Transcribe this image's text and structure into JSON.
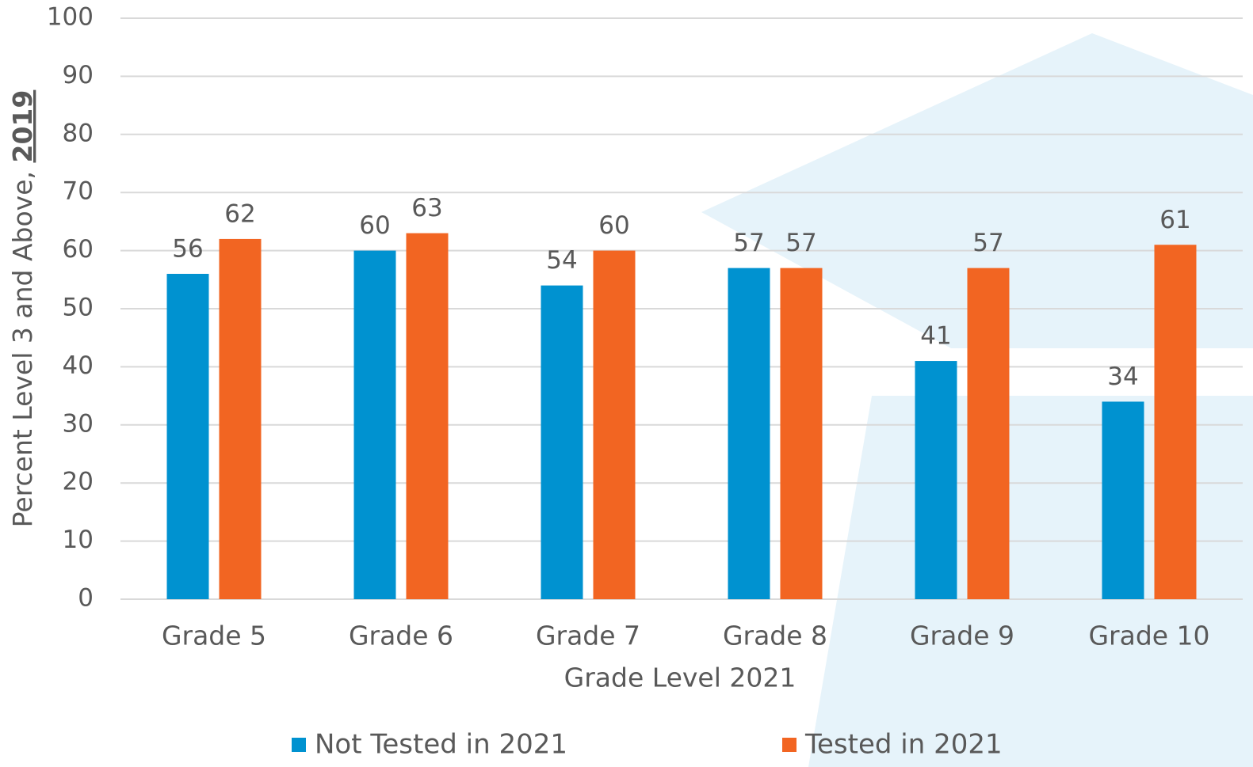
{
  "chart_data": {
    "type": "bar",
    "x_label": "Grade Level 2021",
    "y_label": "Percent Level 3 and Above,",
    "y_label_emphasis": "2019",
    "categories": [
      "Grade 5",
      "Grade 6",
      "Grade 7",
      "Grade 8",
      "Grade 9",
      "Grade 10"
    ],
    "series": [
      {
        "name": "Not Tested in 2021",
        "color": "#0092d0",
        "values": [
          56,
          60,
          54,
          57,
          41,
          34
        ]
      },
      {
        "name": "Tested in 2021",
        "color": "#f26522",
        "values": [
          62,
          63,
          60,
          57,
          57,
          61
        ]
      }
    ],
    "ylim": [
      0,
      100
    ],
    "yticks": [
      0,
      10,
      20,
      30,
      40,
      50,
      60,
      70,
      80,
      90,
      100
    ],
    "grid": true,
    "legend": "bottom"
  }
}
